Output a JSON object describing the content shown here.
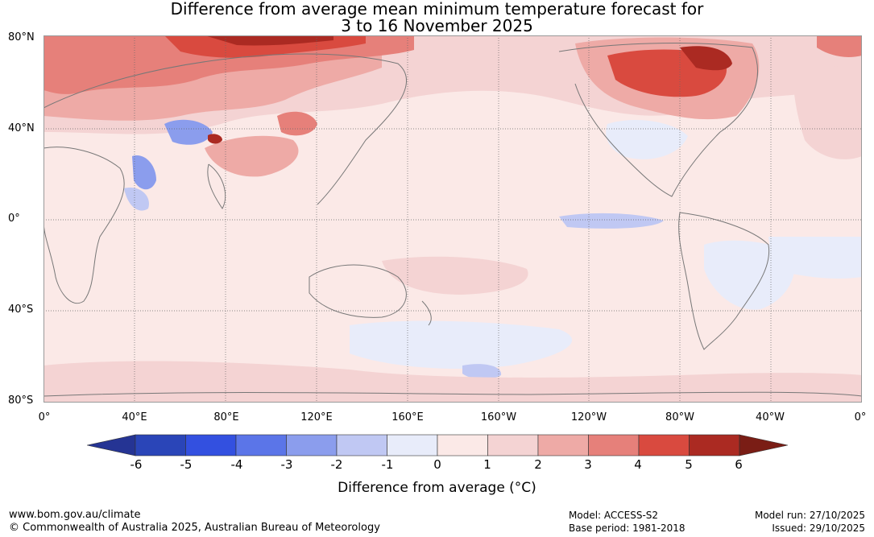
{
  "title": {
    "line1": "Difference from average mean minimum temperature forecast for",
    "line2": "3 to 16 November 2025"
  },
  "axes": {
    "lat_labels": [
      "80°N",
      "40°N",
      "0°",
      "40°S",
      "80°S"
    ],
    "lon_labels": [
      "0°",
      "40°E",
      "80°E",
      "120°E",
      "160°E",
      "160°W",
      "120°W",
      "80°W",
      "40°W",
      "0°"
    ]
  },
  "colorbar": {
    "title": "Difference from average (°C)",
    "ticks": [
      "-6",
      "-5",
      "-4",
      "-3",
      "-2",
      "-1",
      "0",
      "1",
      "2",
      "3",
      "4",
      "5",
      "6"
    ],
    "colors": [
      "#253494",
      "#2a45b8",
      "#3350e0",
      "#5b75e8",
      "#8b9ded",
      "#c0c8f3",
      "#e8ecfa",
      "#fbe9e7",
      "#f4d3d3",
      "#eeaaa6",
      "#e6807a",
      "#d94a3f",
      "#ab2a22",
      "#7a1d15"
    ]
  },
  "footer": {
    "website": "www.bom.gov.au/climate",
    "copyright": "© Commonwealth of Australia 2025, Australian Bureau of Meteorology",
    "model": "Model: ACCESS-S2",
    "base_period": "Base period: 1981-2018",
    "model_run": "Model run: 27/10/2025",
    "issued": "Issued: 29/10/2025"
  }
}
